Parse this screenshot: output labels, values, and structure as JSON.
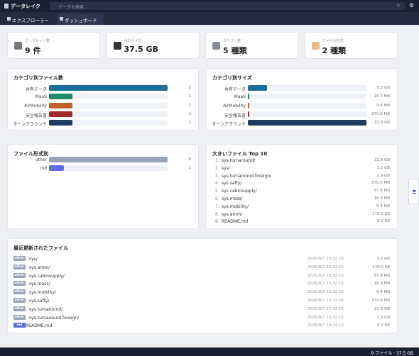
{
  "header": {
    "title": "データレイク",
    "search_placeholder": "データを検索..."
  },
  "tabs": [
    "エクスプローラー",
    "ダッシュボード"
  ],
  "stats": [
    {
      "label": "データセット数",
      "value": "9 件"
    },
    {
      "label": "合計サイズ",
      "value": "37.5 GB"
    },
    {
      "label": "カテゴリ数",
      "value": "5 種類"
    },
    {
      "label": "ファイル形式",
      "value": "2 種類"
    }
  ],
  "category_counts": {
    "title": "カテゴリ別ファイル数",
    "categories": [
      "共有データ",
      "MaaS",
      "AirMobility",
      "安全報告書",
      "ターンアラウンド"
    ],
    "values": [
      5,
      1,
      1,
      1,
      1
    ],
    "colors": [
      "#1a6e9a",
      "#1d8a6a",
      "#c0622a",
      "#a32a2a",
      "#1e3a5f"
    ]
  },
  "category_sizes": {
    "title": "カテゴリ別サイズ",
    "categories": [
      "共有データ",
      "MaaS",
      "AirMobility",
      "安全報告書",
      "ターンアラウンド"
    ],
    "values": [
      5.2,
      0.0163,
      0.0094,
      0.3709,
      31.9
    ],
    "value_labels": [
      "5.2 GB",
      "16.3 MB",
      "9.4 MB",
      "370.9 MB",
      "31.9 GB"
    ],
    "colors": [
      "#1a6e9a",
      "#1d8a6a",
      "#c0622a",
      "#a32a2a",
      "#1e3a5f"
    ]
  },
  "format_counts": {
    "title": "ファイル形式別",
    "categories": [
      "other",
      "md"
    ],
    "values": [
      8,
      1
    ],
    "colors": [
      "#9aa3b5",
      "#5b6ee1"
    ]
  },
  "top_files": {
    "title": "大きいファイル Top 10",
    "rows": [
      {
        "rank": "1.",
        "name": "sys.turnaround/",
        "size": "31.9 GB"
      },
      {
        "rank": "2.",
        "name": "sys/",
        "size": "3.2 GB"
      },
      {
        "rank": "3.",
        "name": "sys.turnaround.foreign/",
        "size": "1.9 GB"
      },
      {
        "rank": "4.",
        "name": "sys.safty/",
        "size": "370.9 MB"
      },
      {
        "rank": "5.",
        "name": "sys.cabinsupply/",
        "size": "57.8 MB"
      },
      {
        "rank": "6.",
        "name": "sys.mass/",
        "size": "16.3 MB"
      },
      {
        "rank": "7.",
        "name": "sys.mobility/",
        "size": "9.4 MB"
      },
      {
        "rank": "8.",
        "name": "sys.amm/",
        "size": "179.0 KB"
      },
      {
        "rank": "9.",
        "name": "README.md",
        "size": "8.2 KB"
      }
    ]
  },
  "recent": {
    "title": "最近更新されたファイル",
    "rows": [
      {
        "type": "other",
        "name": "sys/",
        "date": "2026/8/7 23:32:16",
        "size": "3.2 GB"
      },
      {
        "type": "other",
        "name": "sys.amm/",
        "date": "2026/8/7 23:32:16",
        "size": "179.0 KB"
      },
      {
        "type": "other",
        "name": "sys.cabinsupply/",
        "date": "2026/8/7 23:32:16",
        "size": "57.8 MB"
      },
      {
        "type": "other",
        "name": "sys.mass/",
        "date": "2026/8/7 23:32:16",
        "size": "16.3 MB"
      },
      {
        "type": "other",
        "name": "sys.mobility/",
        "date": "2026/8/7 23:32:16",
        "size": "9.4 MB"
      },
      {
        "type": "other",
        "name": "sys.safty/",
        "date": "2026/8/7 23:32:16",
        "size": "370.9 MB"
      },
      {
        "type": "other",
        "name": "sys.turnaround/",
        "date": "2026/8/7 23:32:16",
        "size": "31.9 GB"
      },
      {
        "type": "other",
        "name": "sys.turnaround.foreign/",
        "date": "2026/8/7 23:32:16",
        "size": "1.9 GB"
      },
      {
        "type": "md",
        "name": "README.md",
        "date": "2026/8/7 10:24:12",
        "size": "8.2 KB"
      }
    ],
    "badge_colors": {
      "other": "#9aa3b5",
      "md": "#5b6ee1"
    }
  },
  "status": "9 ファイル · 37.5 GB",
  "side_tab": "AI"
}
